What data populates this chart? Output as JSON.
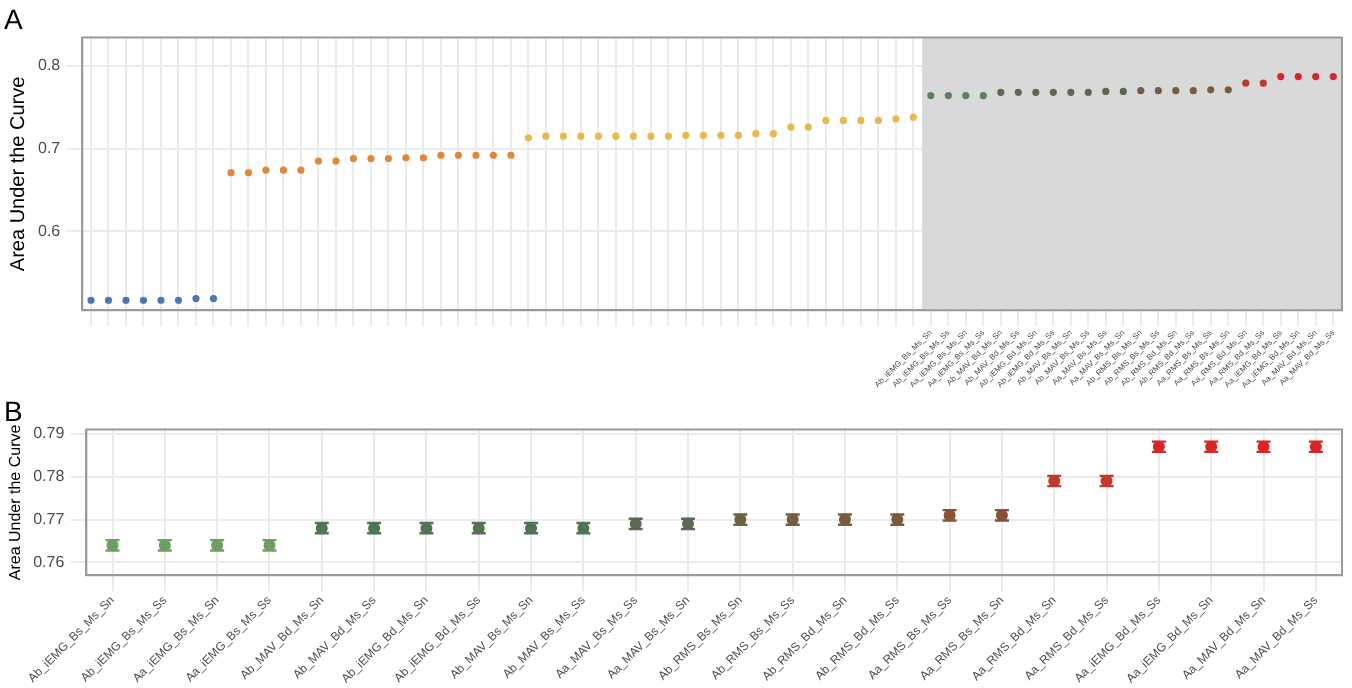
{
  "chart_data": [
    {
      "type": "scatter",
      "title": "A",
      "ylabel": "Area Under the Curve",
      "categories": [
        null,
        null,
        null,
        null,
        null,
        null,
        null,
        null,
        null,
        null,
        null,
        null,
        null,
        null,
        null,
        null,
        null,
        null,
        null,
        null,
        null,
        null,
        null,
        null,
        null,
        null,
        null,
        null,
        null,
        null,
        null,
        null,
        null,
        null,
        null,
        null,
        null,
        null,
        null,
        null,
        null,
        null,
        null,
        null,
        null,
        null,
        null,
        null,
        "Ab_iEMG_Bs_Ms_Sn",
        "Ab_iEMG_Bs_Ms_Ss",
        "Aa_iEMG_Bs_Ms_Sn",
        "Aa_iEMG_Bs_Ms_Ss",
        "Ab_MAV_Bd_Ms_Sn",
        "Ab_MAV_Bd_Ms_Ss",
        "Ab_iEMG_Bd_Ms_Sn",
        "Ab_iEMG_Bd_Ms_Ss",
        "Ab_MAV_Bs_Ms_Sn",
        "Ab_MAV_Bs_Ms_Ss",
        "Aa_MAV_Bs_Ms_Ss",
        "Aa_MAV_Bs_Ms_Sn",
        "Ab_RMS_Bs_Ms_Sn",
        "Ab_RMS_Bs_Ms_Ss",
        "Ab_RMS_Bd_Ms_Sn",
        "Ab_RMS_Bd_Ms_Ss",
        "Aa_RMS_Bs_Ms_Ss",
        "Aa_RMS_Bs_Ms_Sn",
        "Aa_RMS_Bd_Ms_Sn",
        "Aa_RMS_Bd_Ms_Ss",
        "Aa_iEMG_Bd_Ms_Ss",
        "Aa_iEMG_Bd_Ms_Sn",
        "Aa_MAV_Bd_Ms_Sn",
        "Aa_MAV_Bd_Ms_Ss"
      ],
      "values": [
        0.517,
        0.517,
        0.517,
        0.517,
        0.517,
        0.517,
        0.519,
        0.519,
        0.671,
        0.671,
        0.674,
        0.674,
        0.674,
        0.685,
        0.685,
        0.688,
        0.688,
        0.688,
        0.689,
        0.689,
        0.692,
        0.692,
        0.692,
        0.692,
        0.692,
        0.713,
        0.715,
        0.715,
        0.715,
        0.715,
        0.715,
        0.715,
        0.715,
        0.715,
        0.716,
        0.716,
        0.716,
        0.716,
        0.718,
        0.718,
        0.726,
        0.726,
        0.734,
        0.734,
        0.734,
        0.734,
        0.736,
        0.738,
        0.764,
        0.764,
        0.764,
        0.764,
        0.768,
        0.768,
        0.768,
        0.768,
        0.768,
        0.768,
        0.769,
        0.769,
        0.77,
        0.77,
        0.77,
        0.77,
        0.771,
        0.771,
        0.779,
        0.779,
        0.787,
        0.787,
        0.787,
        0.787
      ],
      "colors": [
        "#4a78b0",
        "#4a78b0",
        "#4a78b0",
        "#4a78b0",
        "#4a78b0",
        "#4a78b0",
        "#4a78b0",
        "#4a78b0",
        "#e0873a",
        "#e0873a",
        "#e0873a",
        "#e0873a",
        "#e0873a",
        "#e0873a",
        "#e0873a",
        "#e0873a",
        "#e0873a",
        "#e0873a",
        "#e0873a",
        "#e0873a",
        "#e0873a",
        "#e0873a",
        "#e0873a",
        "#e0873a",
        "#e0873a",
        "#e8b84a",
        "#e8b84a",
        "#e8b84a",
        "#e8b84a",
        "#e8b84a",
        "#e8b84a",
        "#e8b84a",
        "#e8b84a",
        "#e8b84a",
        "#e8b84a",
        "#e8b84a",
        "#e8b84a",
        "#e8b84a",
        "#e8b84a",
        "#e8b84a",
        "#e8b84a",
        "#e8b84a",
        "#e8b84a",
        "#e8b84a",
        "#e8b84a",
        "#e8b84a",
        "#e8b84a",
        "#e8b84a",
        "#5f7f5f",
        "#5f7f5f",
        "#5f7f5f",
        "#5f7f5f",
        "#5a6a50",
        "#5a6a50",
        "#5a6a50",
        "#5a6a50",
        "#5a6a50",
        "#5a6a50",
        "#5a6a50",
        "#5a6a50",
        "#7a5c3c",
        "#7a5c3c",
        "#7a5c3c",
        "#7a5c3c",
        "#7a5c3c",
        "#7a5c3c",
        "#c0392b",
        "#c0392b",
        "#d62728",
        "#d62728",
        "#d62728",
        "#d62728"
      ],
      "ylim": [
        0.505,
        0.834
      ],
      "yticks": [
        0.6,
        0.7,
        0.8
      ],
      "grid": true,
      "marker": "circle",
      "bands": [
        {
          "axis": "x",
          "from": "Ab_iEMG_Bs_Ms_Sn",
          "to": "Aa_MAV_Bd_Ms_Ss",
          "color": "#d9d9d9"
        }
      ]
    },
    {
      "type": "scatter",
      "title": "B",
      "ylabel": "Area Under the Curve",
      "categories": [
        "Ab_iEMG_Bs_Ms_Sn",
        "Ab_iEMG_Bs_Ms_Ss",
        "Aa_iEMG_Bs_Ms_Sn",
        "Aa_iEMG_Bs_Ms_Ss",
        "Ab_MAV_Bd_Ms_Sn",
        "Ab_MAV_Bd_Ms_Ss",
        "Ab_iEMG_Bd_Ms_Sn",
        "Ab_iEMG_Bd_Ms_Ss",
        "Ab_MAV_Bs_Ms_Sn",
        "Ab_MAV_Bs_Ms_Ss",
        "Aa_MAV_Bs_Ms_Ss",
        "Aa_MAV_Bs_Ms_Sn",
        "Ab_RMS_Bs_Ms_Sn",
        "Ab_RMS_Bs_Ms_Ss",
        "Ab_RMS_Bd_Ms_Sn",
        "Ab_RMS_Bd_Ms_Ss",
        "Aa_RMS_Bs_Ms_Ss",
        "Aa_RMS_Bs_Ms_Sn",
        "Aa_RMS_Bd_Ms_Sn",
        "Aa_RMS_Bd_Ms_Ss",
        "Aa_iEMG_Bd_Ms_Ss",
        "Aa_iEMG_Bd_Ms_Sn",
        "Aa_MAV_Bd_Ms_Sn",
        "Aa_MAV_Bd_Ms_Ss"
      ],
      "values": [
        0.764,
        0.764,
        0.764,
        0.764,
        0.768,
        0.768,
        0.768,
        0.768,
        0.768,
        0.768,
        0.769,
        0.769,
        0.77,
        0.77,
        0.77,
        0.77,
        0.771,
        0.771,
        0.779,
        0.779,
        0.787,
        0.787,
        0.787,
        0.787
      ],
      "errors": [
        0.0012,
        0.0012,
        0.0012,
        0.0012,
        0.0012,
        0.0012,
        0.0012,
        0.0012,
        0.0012,
        0.0012,
        0.0012,
        0.0012,
        0.0012,
        0.0012,
        0.0012,
        0.0012,
        0.0012,
        0.0012,
        0.0012,
        0.0012,
        0.0012,
        0.0012,
        0.0012,
        0.0012
      ],
      "colors": [
        "#6f9e62",
        "#6f9e62",
        "#6f9e62",
        "#6f9e62",
        "#4f7552",
        "#4f7552",
        "#4f7552",
        "#4f7552",
        "#4f7552",
        "#4f7552",
        "#5a6a50",
        "#5a6a50",
        "#6e6040",
        "#6e6040",
        "#7a5c3c",
        "#7a5c3c",
        "#8a5038",
        "#8a5038",
        "#c0392b",
        "#c0392b",
        "#d62728",
        "#d62728",
        "#d62728",
        "#d62728"
      ],
      "ylim": [
        0.757,
        0.791
      ],
      "yticks": [
        0.76,
        0.77,
        0.78,
        0.79
      ],
      "grid": true,
      "marker": "circle"
    }
  ]
}
